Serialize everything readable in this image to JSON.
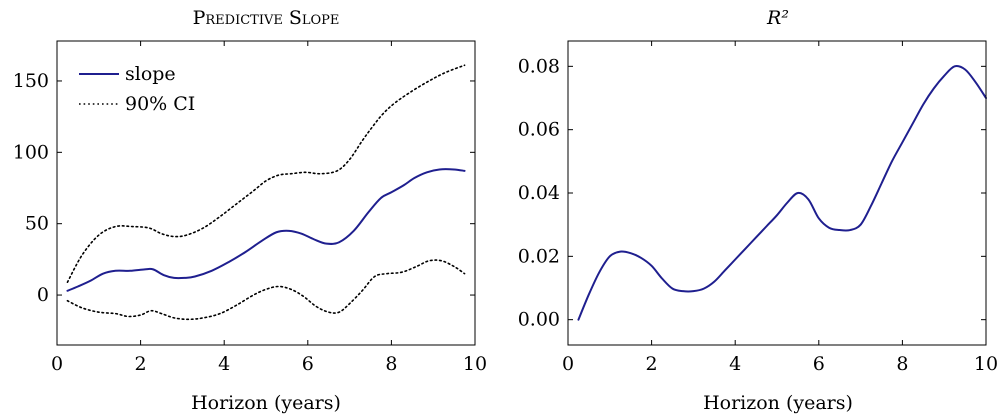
{
  "chart_data": [
    {
      "type": "line",
      "title": "Predictive Slope",
      "xlabel": "Horizon (years)",
      "ylabel": "",
      "xlim": [
        0,
        10
      ],
      "ylim": [
        -35,
        178
      ],
      "xticks": [
        0,
        2,
        4,
        6,
        8,
        10
      ],
      "yticks": [
        0,
        50,
        100,
        150
      ],
      "xtick_labels": [
        "0",
        "2",
        "4",
        "6",
        "8",
        "10"
      ],
      "ytick_labels": [
        "0",
        "50",
        "100",
        "150"
      ],
      "legend_position": "top-left",
      "series": [
        {
          "name": "slope",
          "style": "solid",
          "color": "#1f1f8f",
          "x": [
            0.25,
            0.5,
            0.8,
            1.1,
            1.4,
            1.75,
            2.1,
            2.3,
            2.55,
            2.8,
            3.05,
            3.3,
            3.7,
            4.1,
            4.5,
            4.9,
            5.25,
            5.55,
            5.85,
            6.15,
            6.45,
            6.75,
            7.1,
            7.45,
            7.75,
            8.0,
            8.3,
            8.55,
            8.85,
            9.15,
            9.5,
            9.75
          ],
          "y": [
            3,
            6,
            10,
            15,
            17,
            17,
            18,
            18,
            14,
            12,
            12,
            13,
            17,
            23,
            30,
            38,
            44,
            45,
            43,
            39,
            36,
            37,
            45,
            58,
            68,
            72,
            77,
            82,
            86,
            88,
            88,
            87
          ]
        },
        {
          "name": "90% CI",
          "style": "dotted",
          "color": "#000000",
          "x": [
            0.25,
            0.6,
            1.0,
            1.4,
            1.8,
            2.2,
            2.5,
            2.8,
            3.1,
            3.5,
            3.9,
            4.3,
            4.7,
            5.0,
            5.3,
            5.6,
            5.95,
            6.3,
            6.7,
            7.0,
            7.3,
            7.55,
            7.8,
            8.1,
            8.5,
            8.9,
            9.3,
            9.75
          ],
          "y": [
            9,
            28,
            42,
            48,
            48,
            47,
            43,
            41,
            42,
            47,
            55,
            64,
            73,
            80,
            84,
            85,
            86,
            85,
            87,
            95,
            108,
            118,
            127,
            135,
            143,
            150,
            156,
            161
          ]
        },
        {
          "name": "",
          "style": "dotted",
          "color": "#000000",
          "x": [
            0.25,
            0.6,
            1.0,
            1.4,
            1.7,
            2.0,
            2.25,
            2.5,
            2.8,
            3.15,
            3.5,
            3.9,
            4.3,
            4.7,
            5.0,
            5.3,
            5.6,
            5.9,
            6.2,
            6.5,
            6.75,
            7.0,
            7.3,
            7.6,
            7.9,
            8.25,
            8.6,
            8.9,
            9.2,
            9.5,
            9.75
          ],
          "y": [
            -4,
            -9,
            -12,
            -13,
            -15,
            -14,
            -11,
            -13,
            -16,
            -17,
            -16,
            -13,
            -7,
            0,
            4,
            6,
            4,
            -1,
            -8,
            -12,
            -12,
            -6,
            3,
            13,
            15,
            16,
            20,
            24,
            24,
            20,
            15
          ]
        }
      ]
    },
    {
      "type": "line",
      "title": "R²",
      "xlabel": "Horizon (years)",
      "ylabel": "",
      "xlim": [
        0,
        10
      ],
      "ylim": [
        -0.008,
        0.088
      ],
      "xticks": [
        0,
        2,
        4,
        6,
        8,
        10
      ],
      "yticks": [
        0.0,
        0.02,
        0.04,
        0.06,
        0.08
      ],
      "xtick_labels": [
        "0",
        "2",
        "4",
        "6",
        "8",
        "10"
      ],
      "ytick_labels": [
        "0.00",
        "0.02",
        "0.04",
        "0.06",
        "0.08"
      ],
      "series": [
        {
          "name": "",
          "style": "solid",
          "color": "#1f1f8f",
          "x": [
            0.25,
            0.5,
            0.75,
            1.0,
            1.25,
            1.5,
            1.75,
            2.0,
            2.25,
            2.5,
            2.75,
            3.0,
            3.25,
            3.5,
            3.75,
            4.0,
            4.25,
            4.5,
            4.75,
            5.0,
            5.25,
            5.5,
            5.75,
            6.0,
            6.25,
            6.5,
            6.75,
            7.0,
            7.25,
            7.5,
            7.75,
            8.0,
            8.25,
            8.5,
            8.75,
            9.0,
            9.25,
            9.5,
            9.75,
            10.0
          ],
          "y": [
            0.0,
            0.008,
            0.015,
            0.02,
            0.0215,
            0.021,
            0.0195,
            0.017,
            0.013,
            0.0098,
            0.009,
            0.009,
            0.0098,
            0.012,
            0.0155,
            0.019,
            0.0225,
            0.026,
            0.0295,
            0.033,
            0.037,
            0.04,
            0.038,
            0.032,
            0.029,
            0.0283,
            0.0283,
            0.03,
            0.036,
            0.043,
            0.05,
            0.056,
            0.062,
            0.068,
            0.073,
            0.077,
            0.08,
            0.079,
            0.075,
            0.07
          ]
        }
      ]
    }
  ]
}
